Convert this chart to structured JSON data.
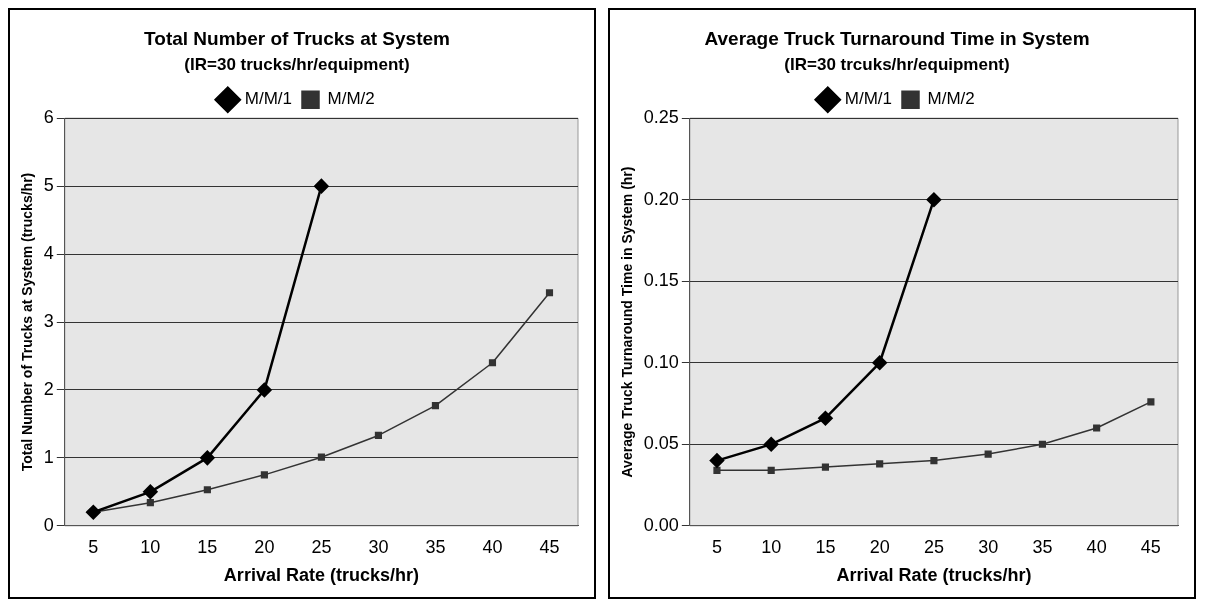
{
  "chart_data": [
    {
      "type": "line",
      "title": "Total Number of Trucks at System",
      "subtitle": "(IR=30 trucks/hr/equipment)",
      "xlabel": "Arrival Rate (trucks/hr)",
      "ylabel": "Total Number of Trucks at System (trucks/hr)",
      "categories": [
        "5",
        "10",
        "15",
        "20",
        "25",
        "30",
        "35",
        "40",
        "45"
      ],
      "series": [
        {
          "name": "M/M/1",
          "color": "#000000",
          "marker": "diamond",
          "values": [
            0.2,
            0.5,
            1.0,
            2.0,
            5.0,
            null,
            null,
            null,
            null
          ]
        },
        {
          "name": "M/M/2",
          "color": "#333333",
          "marker": "square",
          "values": [
            0.2,
            0.34,
            0.53,
            0.75,
            1.01,
            1.33,
            1.77,
            2.4,
            3.43
          ]
        }
      ],
      "ylim": [
        0,
        6
      ],
      "yticks": [
        0,
        1,
        2,
        3,
        4,
        5,
        6
      ],
      "grid": "y",
      "legend": "top"
    },
    {
      "type": "line",
      "title": "Average Truck Turnaround Time in System",
      "subtitle": "(IR=30 trcuks/hr/equipment)",
      "xlabel": "Arrival Rate (trucks/hr)",
      "ylabel": "Average Truck Turnaround Time in System (hr)",
      "categories": [
        "5",
        "10",
        "15",
        "20",
        "25",
        "30",
        "35",
        "40",
        "45"
      ],
      "series": [
        {
          "name": "M/M/1",
          "color": "#000000",
          "marker": "diamond",
          "values": [
            0.04,
            0.05,
            0.066,
            0.1,
            0.2,
            null,
            null,
            null,
            null
          ]
        },
        {
          "name": "M/M/2",
          "color": "#333333",
          "marker": "square",
          "values": [
            0.034,
            0.034,
            0.036,
            0.038,
            0.04,
            0.044,
            0.05,
            0.06,
            0.076
          ]
        }
      ],
      "ylim": [
        0,
        0.25
      ],
      "yticks": [
        {
          "value": 0,
          "label": "0.00"
        },
        {
          "value": 0.05,
          "label": "0.05"
        },
        {
          "value": 0.1,
          "label": "0.10"
        },
        {
          "value": 0.15,
          "label": "0.15"
        },
        {
          "value": 0.2,
          "label": "0.20"
        },
        {
          "value": 0.25,
          "label": "0.25"
        }
      ],
      "grid": "y",
      "legend": "top"
    }
  ]
}
